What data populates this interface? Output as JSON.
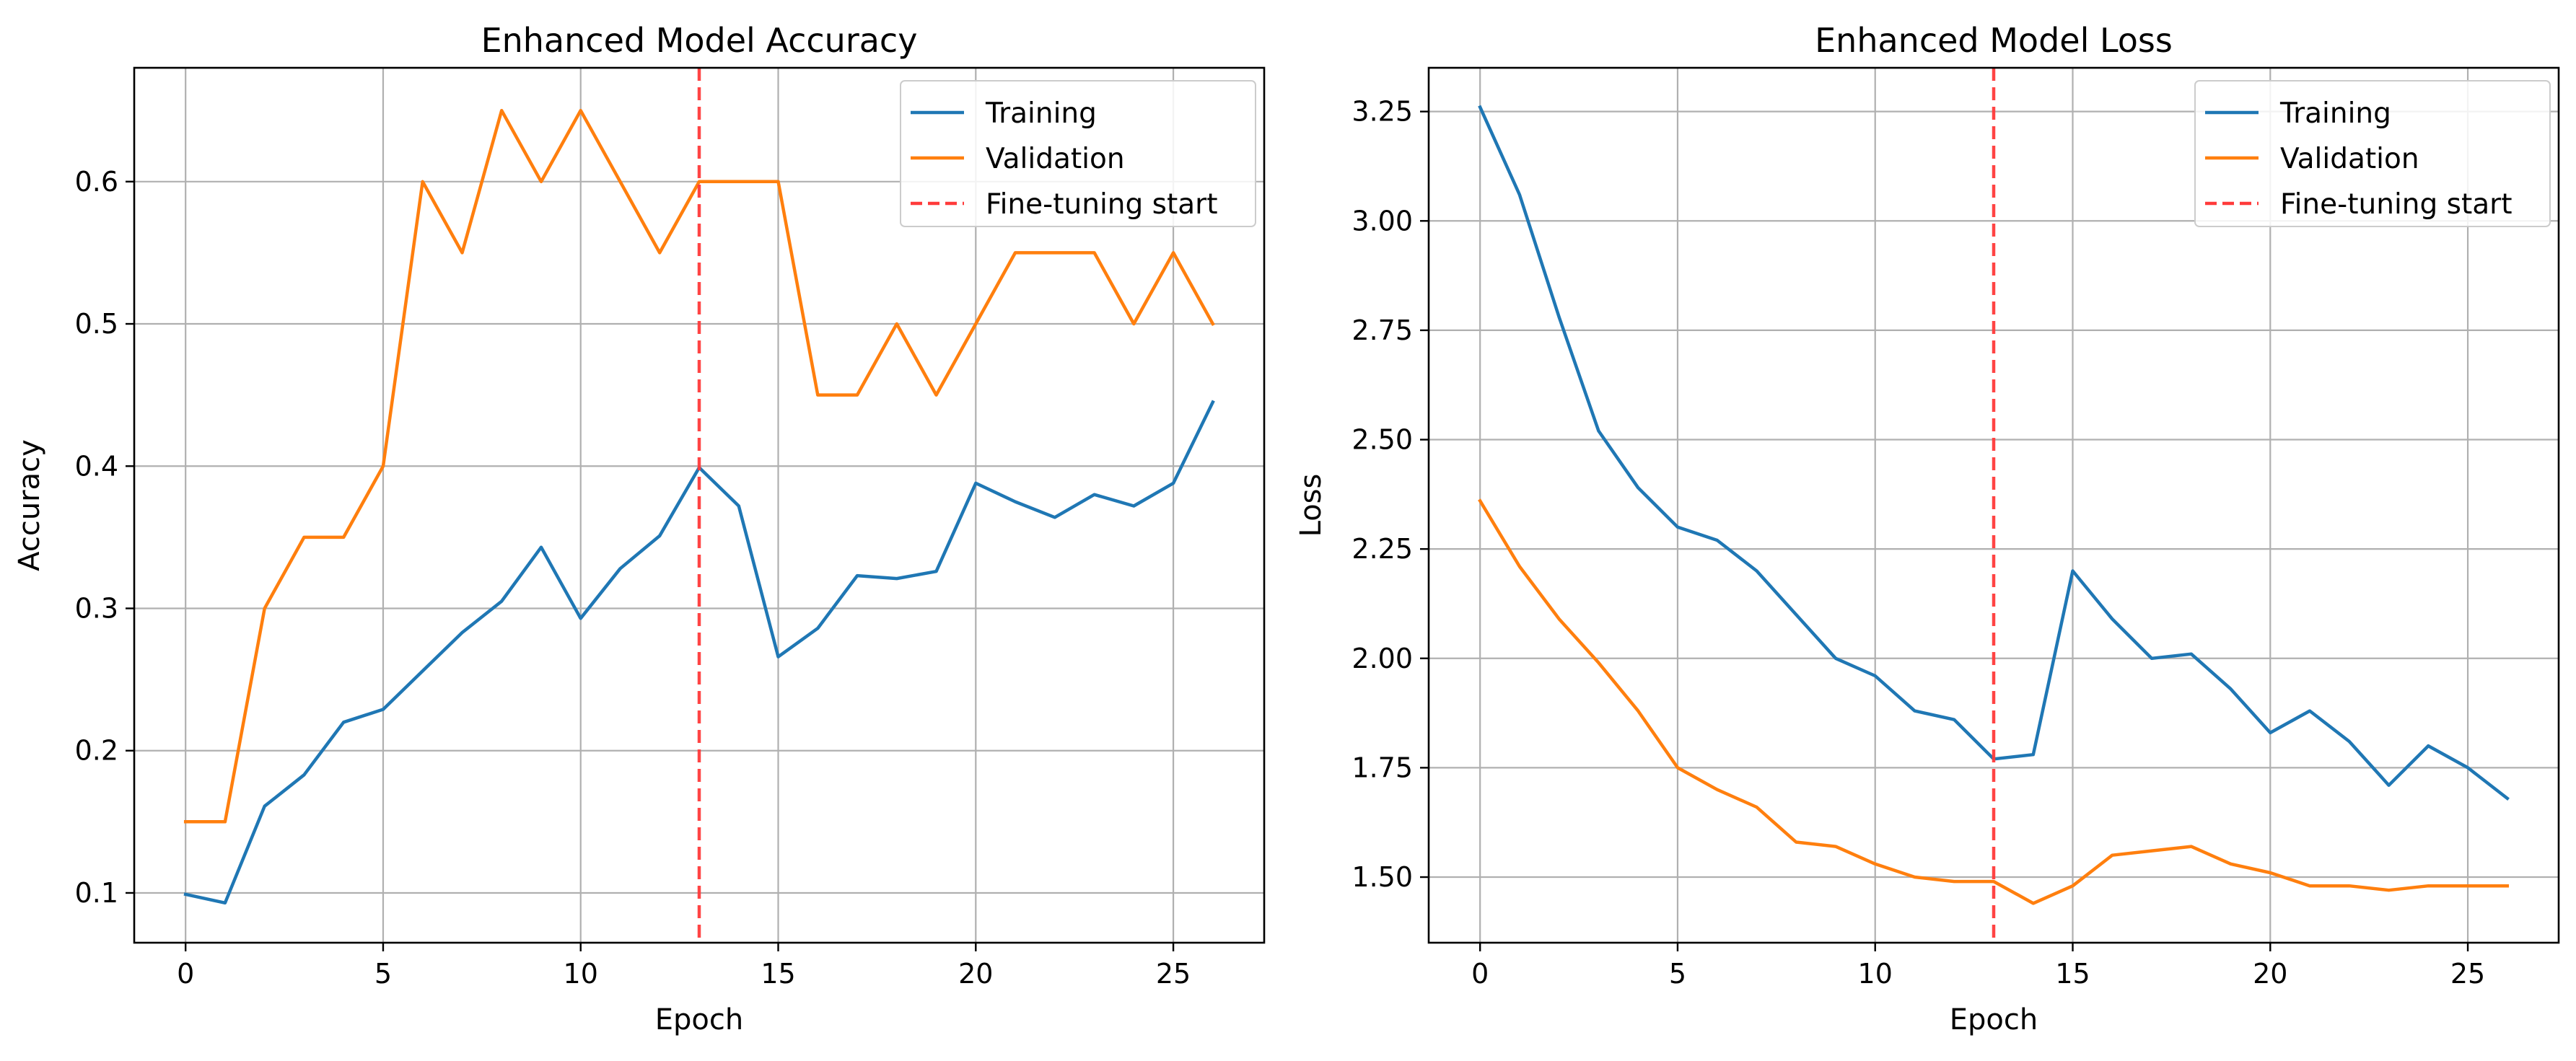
{
  "colors": {
    "training": "#1f77b4",
    "validation": "#ff7f0e",
    "fine_tuning": "#ff3b3b",
    "grid": "#b0b0b0",
    "frame": "#000000"
  },
  "chart_data": [
    {
      "type": "line",
      "title": "Enhanced Model Accuracy",
      "xlabel": "Epoch",
      "ylabel": "Accuracy",
      "xlim": [
        -1.3,
        27.3
      ],
      "ylim": [
        0.065,
        0.68
      ],
      "xticks": [
        0,
        5,
        10,
        15,
        20,
        25
      ],
      "xtick_labels": [
        "0",
        "5",
        "10",
        "15",
        "20",
        "25"
      ],
      "yticks": [
        0.1,
        0.2,
        0.3,
        0.4,
        0.5,
        0.6
      ],
      "ytick_labels": [
        "0.1",
        "0.2",
        "0.3",
        "0.4",
        "0.5",
        "0.6"
      ],
      "grid": true,
      "legend_position": "top-right",
      "x": [
        0,
        1,
        2,
        3,
        4,
        5,
        6,
        7,
        8,
        9,
        10,
        11,
        12,
        13,
        14,
        15,
        16,
        17,
        18,
        19,
        20,
        21,
        22,
        23,
        24,
        25,
        26
      ],
      "series": [
        {
          "name": "Training",
          "color_key": "training",
          "values": [
            0.099,
            0.093,
            0.161,
            0.183,
            0.22,
            0.229,
            0.256,
            0.283,
            0.305,
            0.343,
            0.293,
            0.328,
            0.351,
            0.399,
            0.372,
            0.266,
            0.286,
            0.323,
            0.321,
            0.326,
            0.388,
            0.375,
            0.364,
            0.38,
            0.372,
            0.388,
            0.445
          ]
        },
        {
          "name": "Validation",
          "color_key": "validation",
          "values": [
            0.15,
            0.15,
            0.3,
            0.35,
            0.35,
            0.4,
            0.6,
            0.55,
            0.65,
            0.6,
            0.65,
            0.6,
            0.55,
            0.6,
            0.6,
            0.6,
            0.45,
            0.45,
            0.5,
            0.45,
            0.5,
            0.55,
            0.55,
            0.55,
            0.5,
            0.55,
            0.5
          ]
        }
      ],
      "vline": {
        "name": "Fine-tuning start",
        "x": 13,
        "color_key": "fine_tuning",
        "style": "dashed"
      }
    },
    {
      "type": "line",
      "title": "Enhanced Model Loss",
      "xlabel": "Epoch",
      "ylabel": "Loss",
      "xlim": [
        -1.3,
        27.3
      ],
      "ylim": [
        1.35,
        3.35
      ],
      "xticks": [
        0,
        5,
        10,
        15,
        20,
        25
      ],
      "xtick_labels": [
        "0",
        "5",
        "10",
        "15",
        "20",
        "25"
      ],
      "yticks": [
        1.5,
        1.75,
        2.0,
        2.25,
        2.5,
        2.75,
        3.0,
        3.25
      ],
      "ytick_labels": [
        "1.50",
        "1.75",
        "2.00",
        "2.25",
        "2.50",
        "2.75",
        "3.00",
        "3.25"
      ],
      "grid": true,
      "legend_position": "top-right",
      "x": [
        0,
        1,
        2,
        3,
        4,
        5,
        6,
        7,
        8,
        9,
        10,
        11,
        12,
        13,
        14,
        15,
        16,
        17,
        18,
        19,
        20,
        21,
        22,
        23,
        24,
        25,
        26
      ],
      "series": [
        {
          "name": "Training",
          "color_key": "training",
          "values": [
            3.26,
            3.06,
            2.78,
            2.52,
            2.39,
            2.3,
            2.27,
            2.2,
            2.1,
            2.0,
            1.96,
            1.88,
            1.86,
            1.77,
            1.78,
            2.2,
            2.09,
            2.0,
            2.01,
            1.93,
            1.83,
            1.88,
            1.81,
            1.71,
            1.8,
            1.75,
            1.68
          ]
        },
        {
          "name": "Validation",
          "color_key": "validation",
          "values": [
            2.36,
            2.21,
            2.09,
            1.99,
            1.88,
            1.75,
            1.7,
            1.66,
            1.58,
            1.57,
            1.53,
            1.5,
            1.49,
            1.49,
            1.44,
            1.48,
            1.55,
            1.56,
            1.57,
            1.53,
            1.51,
            1.48,
            1.48,
            1.47,
            1.48,
            1.48,
            1.48
          ]
        }
      ],
      "vline": {
        "name": "Fine-tuning start",
        "x": 13,
        "color_key": "fine_tuning",
        "style": "dashed"
      }
    }
  ]
}
